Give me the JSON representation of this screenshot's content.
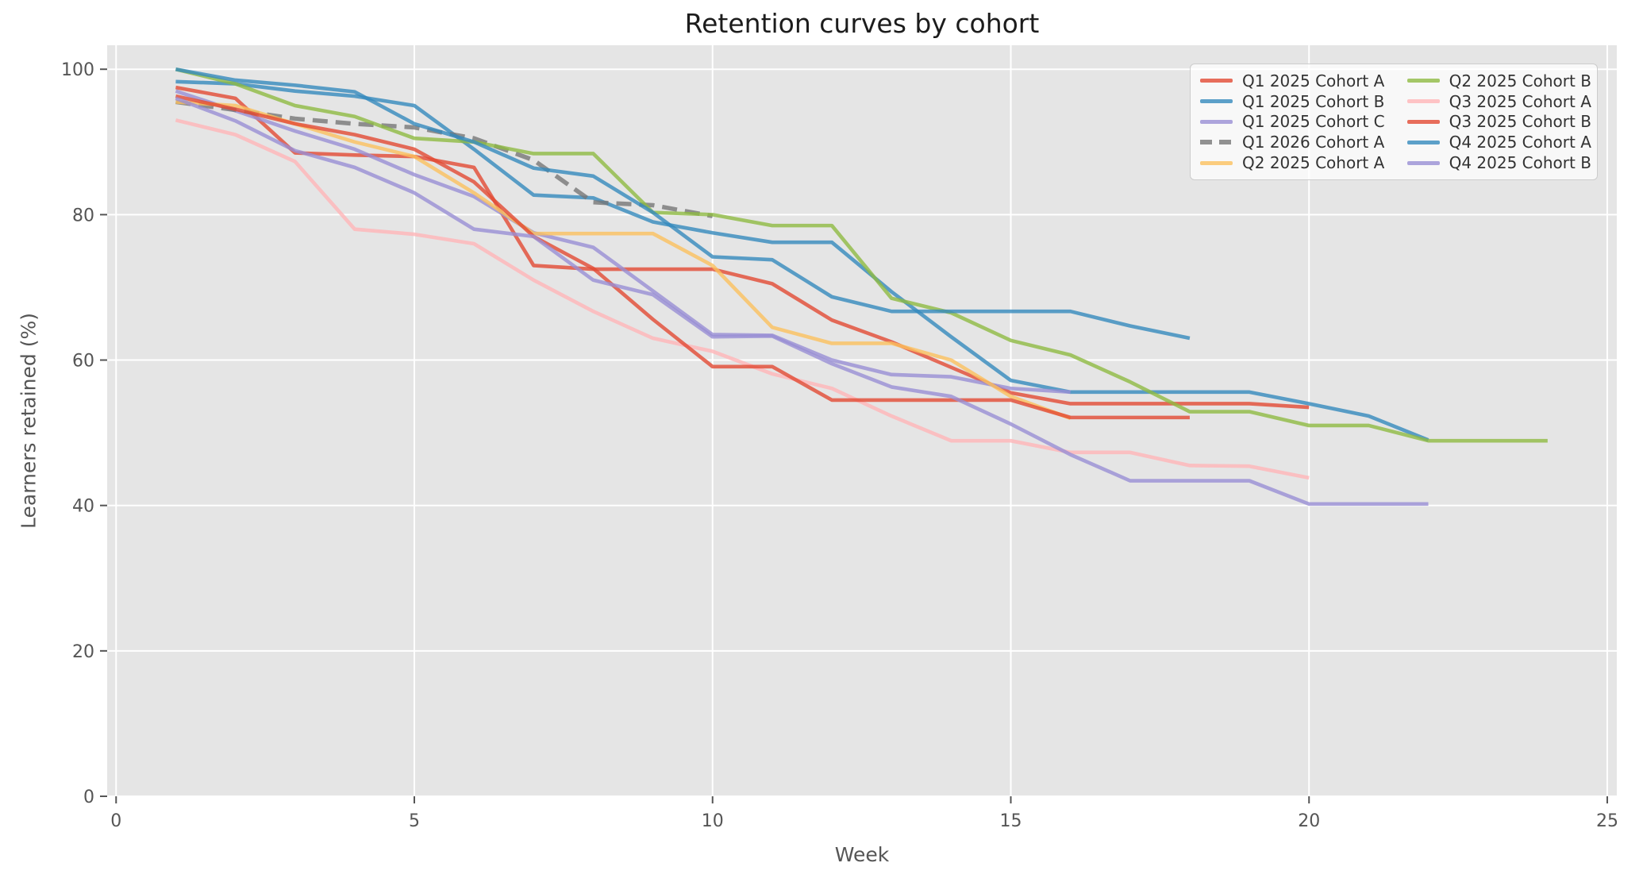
{
  "title": "Retention curves by cohort",
  "axes": {
    "xlabel": "Week",
    "ylabel": "Learners retained (%)"
  },
  "chart_data": {
    "type": "line",
    "title": "Retention curves by cohort",
    "xlabel": "Week",
    "ylabel": "Learners retained (%)",
    "xlim": [
      -0.15,
      25.16
    ],
    "ylim": [
      0,
      103.3
    ],
    "xticks": [
      0,
      5,
      10,
      15,
      20,
      25
    ],
    "yticks": [
      0,
      20,
      40,
      60,
      80,
      100
    ],
    "grid": true,
    "plot_background": "#E5E5E5",
    "grid_color": "#FFFFFF",
    "tick_color": "#555555",
    "legend": {
      "position": "upper right",
      "columns": 2,
      "order": "column-major"
    },
    "series": [
      {
        "name": "Q1 2025 Cohort A",
        "color": "#E24A33",
        "dashed": false,
        "start_week": 1,
        "values": [
          97.5,
          96,
          88.5,
          88.2,
          88,
          86.5,
          73,
          72.5,
          72.5,
          72.5,
          70.5,
          65.5,
          62.5,
          59,
          55.5,
          54,
          54,
          54,
          54,
          53.5
        ]
      },
      {
        "name": "Q1 2025 Cohort B",
        "color": "#348ABD",
        "dashed": false,
        "start_week": 1,
        "values": [
          98.3,
          98,
          97,
          96.3,
          95,
          89,
          82.7,
          82.3,
          79,
          77.5,
          76.2,
          76.2,
          69.4,
          63.2,
          57.2,
          55.6,
          55.6,
          55.6,
          55.6,
          54,
          52.3,
          49
        ]
      },
      {
        "name": "Q1 2025 Cohort C",
        "color": "#988ED5",
        "dashed": false,
        "start_week": 1,
        "values": [
          97,
          94.3,
          91.5,
          89,
          85.5,
          82.5,
          77.5,
          75.5,
          69.5,
          63.5,
          63.4,
          60,
          58,
          57.7,
          56.1,
          55.6
        ]
      },
      {
        "name": "Q1 2026 Cohort A",
        "color": "#777777",
        "dashed": true,
        "start_week": 1,
        "values": [
          95.5,
          94.4,
          93.2,
          92.5,
          92,
          90.5,
          87.5,
          81.7,
          81.3,
          79.8
        ]
      },
      {
        "name": "Q2 2025 Cohort A",
        "color": "#FBC15E",
        "dashed": false,
        "start_week": 1,
        "values": [
          95.5,
          95,
          92.5,
          90,
          88,
          83,
          77.4,
          77.4,
          77.4,
          73,
          64.5,
          62.3,
          62.3,
          60,
          55,
          52
        ]
      },
      {
        "name": "Q2 2025 Cohort B",
        "color": "#8EBA42",
        "dashed": false,
        "start_week": 1,
        "values": [
          100,
          98,
          95,
          93.5,
          90.5,
          90,
          88.4,
          88.4,
          80.3,
          80,
          78.5,
          78.5,
          68.5,
          66.5,
          62.7,
          60.7,
          57,
          52.9,
          52.9,
          51,
          51,
          48.9,
          48.9,
          48.9
        ]
      },
      {
        "name": "Q3 2025 Cohort A",
        "color": "#FFB5B8",
        "dashed": false,
        "start_week": 1,
        "values": [
          93,
          91,
          87.3,
          78,
          77.3,
          76,
          71,
          66.7,
          63,
          61.2,
          58.1,
          56.1,
          52.3,
          48.9,
          48.9,
          47.3,
          47.3,
          45.5,
          45.4,
          43.8
        ]
      },
      {
        "name": "Q3 2025 Cohort B",
        "color": "#E24A33",
        "dashed": false,
        "start_week": 1,
        "values": [
          96.3,
          94.5,
          92.5,
          91,
          89,
          84.5,
          77,
          72.6,
          65.6,
          59.1,
          59.1,
          54.5,
          54.5,
          54.5,
          54.5,
          52.1,
          52.1,
          52.1
        ]
      },
      {
        "name": "Q4 2025 Cohort A",
        "color": "#348ABD",
        "dashed": false,
        "start_week": 1,
        "values": [
          100,
          98.5,
          97.8,
          96.9,
          92.5,
          90,
          86.4,
          85.3,
          80.3,
          74.2,
          73.8,
          68.7,
          66.7,
          66.7,
          66.7,
          66.7,
          64.7,
          63
        ]
      },
      {
        "name": "Q4 2025 Cohort B",
        "color": "#988ED5",
        "dashed": false,
        "start_week": 1,
        "values": [
          96,
          92.9,
          88.8,
          86.5,
          83,
          78,
          77,
          71,
          69,
          63.2,
          63.3,
          59.5,
          56.3,
          55,
          51.2,
          47,
          43.4,
          43.4,
          43.4,
          40.2,
          40.2,
          40.2
        ]
      }
    ]
  }
}
